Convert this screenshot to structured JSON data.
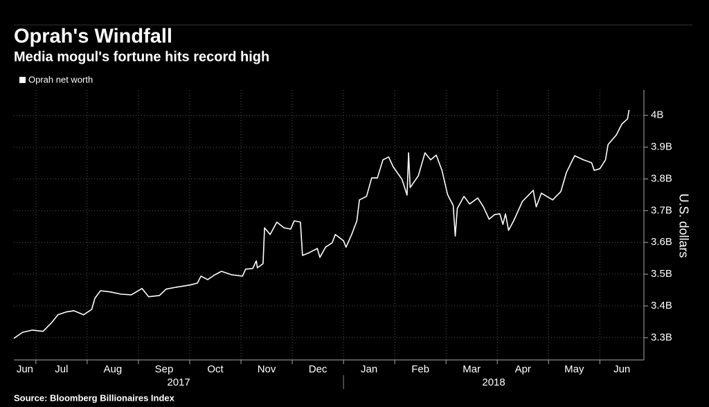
{
  "chart_data": {
    "type": "line",
    "title": "Oprah's Windfall",
    "subtitle": "Media mogul's fortune hits record high",
    "source": "Source: Bloomberg Billionaires Index",
    "y_axis_label": "U.S. dollars",
    "legend": "top-left",
    "grid": true,
    "xlim": [
      0.57,
      12.86
    ],
    "xticks": [
      1,
      2,
      3,
      4,
      5,
      6,
      7,
      8,
      9,
      10,
      11,
      12
    ],
    "month_labels": [
      "Jun",
      "Jul",
      "Aug",
      "Sep",
      "Oct",
      "Nov",
      "Dec",
      "Jan",
      "Feb",
      "Mar",
      "Apr",
      "May",
      "Jun"
    ],
    "year_labels": [
      "2017",
      "2018"
    ],
    "year_break": 7,
    "ylim": [
      3.23,
      4.08
    ],
    "yticks": [
      {
        "value": 3.3,
        "label": "3.3B"
      },
      {
        "value": 3.4,
        "label": "3.4B"
      },
      {
        "value": 3.5,
        "label": "3.5B"
      },
      {
        "value": 3.6,
        "label": "3.6B"
      },
      {
        "value": 3.7,
        "label": "3.7B"
      },
      {
        "value": 3.8,
        "label": "3.8B"
      },
      {
        "value": 3.9,
        "label": "3.9B"
      },
      {
        "value": 4,
        "label": "4B"
      }
    ],
    "x": [
      0.57,
      0.74,
      0.93,
      1.14,
      1.31,
      1.43,
      1.59,
      1.74,
      1.93,
      2.09,
      2.15,
      2.26,
      2.46,
      2.66,
      2.86,
      3.07,
      3.2,
      3.41,
      3.54,
      3.74,
      4.01,
      4.15,
      4.22,
      4.35,
      4.49,
      4.62,
      4.82,
      5.03,
      5.09,
      5.23,
      5.3,
      5.32,
      5.43,
      5.46,
      5.57,
      5.7,
      5.84,
      5.97,
      6.04,
      6.16,
      6.2,
      6.31,
      6.49,
      6.54,
      6.65,
      6.78,
      6.84,
      7.0,
      7.05,
      7.16,
      7.26,
      7.31,
      7.45,
      7.55,
      7.66,
      7.77,
      7.88,
      7.97,
      8.14,
      8.24,
      8.27,
      8.3,
      8.46,
      8.59,
      8.7,
      8.81,
      8.92,
      9.03,
      9.14,
      9.18,
      9.22,
      9.35,
      9.46,
      9.62,
      9.73,
      9.84,
      9.95,
      10.05,
      10.11,
      10.16,
      10.22,
      10.32,
      10.49,
      10.7,
      10.76,
      10.86,
      11.08,
      11.24,
      11.35,
      11.51,
      11.68,
      11.84,
      11.89,
      12.0,
      12.11,
      12.16,
      12.32,
      12.43,
      12.54,
      12.57
    ],
    "series": [
      {
        "name": "Oprah net worth",
        "color": "#ffffff",
        "values": [
          3.298,
          3.317,
          3.324,
          3.32,
          3.348,
          3.372,
          3.381,
          3.385,
          3.372,
          3.389,
          3.424,
          3.448,
          3.444,
          3.437,
          3.435,
          3.455,
          3.429,
          3.433,
          3.453,
          3.459,
          3.466,
          3.472,
          3.494,
          3.483,
          3.498,
          3.509,
          3.498,
          3.494,
          3.516,
          3.518,
          3.542,
          3.52,
          3.533,
          3.646,
          3.625,
          3.664,
          3.646,
          3.642,
          3.668,
          3.664,
          3.559,
          3.566,
          3.581,
          3.553,
          3.585,
          3.599,
          3.625,
          3.605,
          3.585,
          3.625,
          3.668,
          3.734,
          3.745,
          3.803,
          3.803,
          3.86,
          3.869,
          3.838,
          3.799,
          3.749,
          3.882,
          3.773,
          3.81,
          3.882,
          3.86,
          3.875,
          3.827,
          3.751,
          3.716,
          3.62,
          3.707,
          3.745,
          3.721,
          3.74,
          3.712,
          3.673,
          3.688,
          3.69,
          3.657,
          3.69,
          3.638,
          3.668,
          3.729,
          3.764,
          3.712,
          3.755,
          3.734,
          3.76,
          3.821,
          3.873,
          3.86,
          3.851,
          3.827,
          3.832,
          3.86,
          3.908,
          3.938,
          3.973,
          3.989,
          4.017
        ]
      }
    ]
  }
}
